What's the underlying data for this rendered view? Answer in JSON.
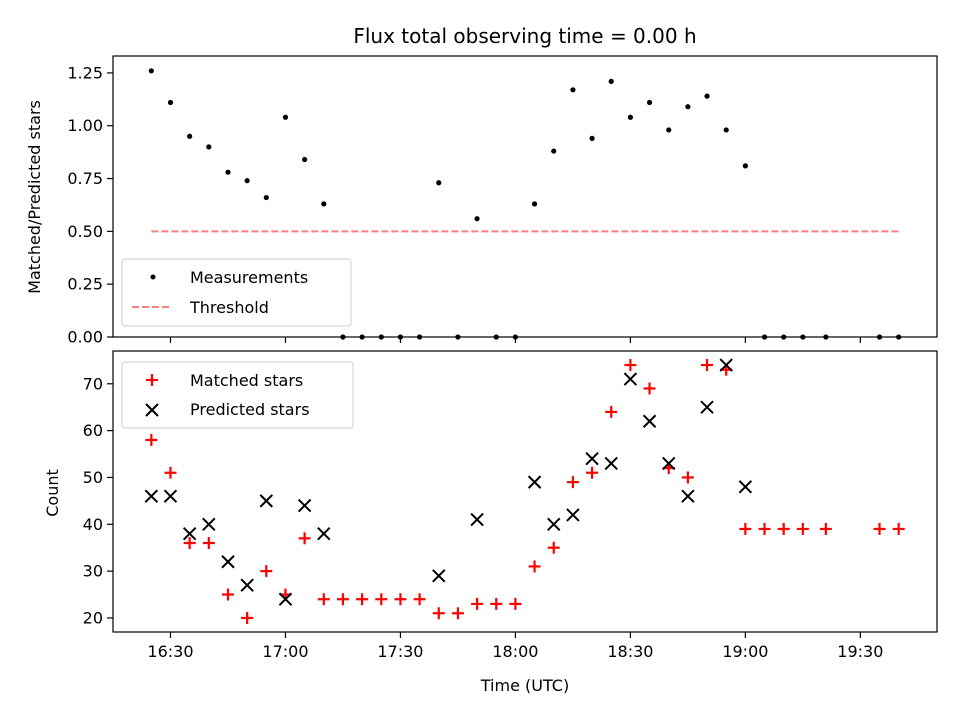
{
  "chart_data": [
    {
      "type": "scatter",
      "title": "Flux total observing time = 0.00 h",
      "xlabel": "",
      "ylabel": "Matched/Predicted stars",
      "xlim": [
        "16:15",
        "19:50"
      ],
      "ylim": [
        0,
        1.33
      ],
      "yticks": [
        "0.00",
        "0.25",
        "0.50",
        "0.75",
        "1.00",
        "1.25"
      ],
      "grid": false,
      "legend": "lower-left",
      "series": [
        {
          "name": "Measurements",
          "color": "#000000",
          "marker": "dot",
          "x": [
            "16:25",
            "16:30",
            "16:35",
            "16:40",
            "16:45",
            "16:50",
            "16:55",
            "17:00",
            "17:05",
            "17:10",
            "17:15",
            "17:20",
            "17:25",
            "17:30",
            "17:35",
            "17:45",
            "17:40",
            "17:50",
            "17:55",
            "18:00",
            "18:05",
            "18:10",
            "18:15",
            "18:20",
            "18:25",
            "18:30",
            "18:35",
            "18:40",
            "18:45",
            "18:50",
            "18:55",
            "19:00",
            "19:05",
            "19:10",
            "19:15",
            "19:21",
            "19:35",
            "19:40"
          ],
          "y": [
            1.26,
            1.11,
            0.95,
            0.9,
            0.78,
            0.74,
            0.66,
            1.04,
            0.84,
            0.63,
            0,
            0,
            0,
            0,
            0,
            0,
            0.73,
            0.56,
            0,
            0,
            0.63,
            0.88,
            1.17,
            0.94,
            1.21,
            1.04,
            1.11,
            0.98,
            1.09,
            1.14,
            0.98,
            0.81,
            0,
            0,
            0,
            0,
            0,
            0
          ]
        },
        {
          "name": "Threshold",
          "color": "#ff7f7f",
          "style": "dashed",
          "x": [
            "16:25",
            "19:40"
          ],
          "y": [
            0.5,
            0.5
          ]
        }
      ]
    },
    {
      "type": "scatter",
      "title": "",
      "xlabel": "Time (UTC)",
      "ylabel": "Count",
      "xlim": [
        "16:15",
        "19:50"
      ],
      "ylim": [
        17,
        77
      ],
      "yticks": [
        "20",
        "30",
        "40",
        "50",
        "60",
        "70"
      ],
      "xticks": [
        "16:30",
        "17:00",
        "17:30",
        "18:00",
        "18:30",
        "19:00",
        "19:30"
      ],
      "grid": false,
      "legend": "upper-left",
      "series": [
        {
          "name": "Matched stars",
          "color": "#ff0000",
          "marker": "plus",
          "x": [
            "16:25",
            "16:30",
            "16:35",
            "16:40",
            "16:45",
            "16:50",
            "16:55",
            "17:00",
            "17:05",
            "17:10",
            "17:15",
            "17:20",
            "17:25",
            "17:30",
            "17:35",
            "17:40",
            "17:45",
            "17:50",
            "17:55",
            "18:00",
            "18:05",
            "18:10",
            "18:15",
            "18:20",
            "18:25",
            "18:30",
            "18:35",
            "18:40",
            "18:45",
            "18:50",
            "18:55",
            "19:00",
            "19:05",
            "19:10",
            "19:15",
            "19:21",
            "19:35",
            "19:40"
          ],
          "y": [
            58,
            51,
            36,
            36,
            25,
            20,
            30,
            25,
            37,
            24,
            24,
            24,
            24,
            24,
            24,
            21,
            21,
            23,
            23,
            23,
            31,
            35,
            49,
            51,
            64,
            74,
            69,
            52,
            50,
            74,
            73,
            39,
            39,
            39,
            39,
            39,
            39,
            39
          ]
        },
        {
          "name": "Predicted stars",
          "color": "#000000",
          "marker": "x",
          "x": [
            "16:25",
            "16:30",
            "16:35",
            "16:40",
            "16:45",
            "16:50",
            "16:55",
            "17:00",
            "17:05",
            "17:10",
            "17:40",
            "17:50",
            "18:05",
            "18:10",
            "18:15",
            "18:20",
            "18:25",
            "18:30",
            "18:35",
            "18:40",
            "18:45",
            "18:50",
            "18:55",
            "19:00"
          ],
          "y": [
            46,
            46,
            38,
            40,
            32,
            27,
            45,
            24,
            44,
            38,
            29,
            41,
            49,
            40,
            42,
            54,
            53,
            71,
            62,
            53,
            46,
            65,
            74,
            48
          ]
        }
      ]
    }
  ]
}
